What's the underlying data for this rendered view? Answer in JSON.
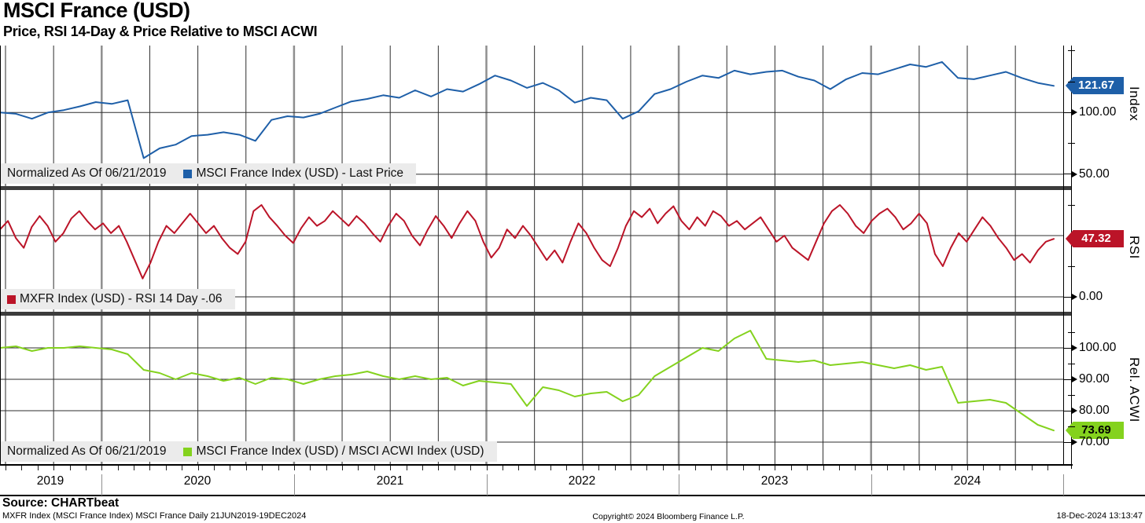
{
  "header": {
    "title": "MSCI France (USD)",
    "subtitle": "Price, RSI 14-Day & Price Relative to MSCI ACWI"
  },
  "colors": {
    "price_blue": "#1e5fa8",
    "rsi_red": "#bb1428",
    "relative_green": "#84d21e",
    "legend_bg": "#ebebeb",
    "grid": "#2e2e2e",
    "grid_year": "#8f8f8f",
    "separator": "#3c3c3c",
    "badge_text_light": "#ffffff",
    "badge_text_dark": "#000000"
  },
  "x_axis": {
    "year_labels": [
      "2019",
      "2020",
      "2021",
      "2022",
      "2023",
      "2024"
    ],
    "date_range": "21JUN2019-19DEC2024"
  },
  "chart_data": [
    {
      "type": "line",
      "panel": "price",
      "axis_title": "Index",
      "ylim": [
        41,
        154.3
      ],
      "yticks": [
        {
          "value": 100,
          "label": "100.00"
        },
        {
          "value": 50,
          "label": "50.00"
        }
      ],
      "yticks_minor": [
        150,
        125,
        75
      ],
      "grid_y": [
        100,
        50
      ],
      "legend_note": "Normalized As Of 06/21/2019",
      "last_value": 121.67,
      "last_label": "121.67",
      "series": [
        {
          "name": "MSCI France Index (USD) - Last Price",
          "color": "#1e5fa8",
          "x_start": "2019-06",
          "x_step": "month",
          "values": [
            100,
            99,
            95,
            100,
            102,
            105,
            108.5,
            107,
            110,
            63,
            71,
            74,
            81,
            82,
            84,
            82,
            77,
            94,
            97,
            96,
            99,
            104,
            109,
            111,
            114,
            112,
            118,
            113,
            119,
            117,
            123,
            130,
            126,
            120,
            124,
            118,
            108,
            112,
            110,
            95,
            101,
            115,
            119,
            125,
            130,
            128,
            134,
            131,
            133,
            134,
            129,
            126,
            119,
            127,
            132,
            131,
            135,
            139,
            137,
            141,
            128,
            127,
            130,
            133,
            128,
            124,
            121.67
          ]
        }
      ]
    },
    {
      "type": "line",
      "panel": "rsi",
      "axis_title": "RSI",
      "ylim": [
        -11.5,
        87.2
      ],
      "yticks": [
        {
          "value": 0,
          "label": "0.00"
        }
      ],
      "yticks_minor": [
        75,
        25
      ],
      "grid_y": [
        50,
        0
      ],
      "legend_note": null,
      "last_value": 47.32,
      "last_label": "47.32",
      "series": [
        {
          "name": "MXFR Index (USD) - RSI 14 Day -.06",
          "color": "#bb1428",
          "x_start": "2019-06",
          "x_step": "half-month",
          "values": [
            55,
            62,
            48,
            40,
            57,
            66,
            58,
            45,
            52,
            64,
            70,
            62,
            55,
            60,
            52,
            58,
            45,
            30,
            15,
            28,
            45,
            58,
            52,
            60,
            68,
            60,
            52,
            58,
            48,
            40,
            35,
            45,
            70,
            75,
            65,
            58,
            50,
            44,
            56,
            65,
            58,
            62,
            70,
            64,
            58,
            66,
            60,
            52,
            45,
            58,
            68,
            62,
            50,
            42,
            55,
            66,
            58,
            48,
            60,
            70,
            62,
            45,
            32,
            40,
            55,
            48,
            58,
            50,
            40,
            30,
            38,
            28,
            45,
            60,
            52,
            40,
            30,
            25,
            40,
            58,
            70,
            65,
            72,
            60,
            68,
            74,
            62,
            55,
            65,
            58,
            70,
            66,
            58,
            62,
            55,
            60,
            65,
            55,
            45,
            50,
            40,
            35,
            30,
            45,
            60,
            70,
            75,
            68,
            58,
            52,
            62,
            68,
            72,
            65,
            55,
            60,
            68,
            60,
            35,
            25,
            40,
            52,
            45,
            55,
            65,
            58,
            48,
            40,
            30,
            35,
            28,
            38,
            45,
            47.32
          ]
        }
      ]
    },
    {
      "type": "line",
      "panel": "relative",
      "axis_title": "Rel. ACWI",
      "ylim": [
        63,
        110.25
      ],
      "yticks": [
        {
          "value": 100,
          "label": "100.00"
        },
        {
          "value": 90,
          "label": "90.00"
        },
        {
          "value": 80,
          "label": "80.00"
        },
        {
          "value": 70,
          "label": "70.00"
        }
      ],
      "yticks_minor": [
        105,
        95,
        85,
        75
      ],
      "grid_y": [
        100,
        90,
        80,
        70
      ],
      "legend_note": "Normalized As Of 06/21/2019",
      "last_value": 73.69,
      "last_label": "73.69",
      "series": [
        {
          "name": "MSCI France Index (USD) / MSCI ACWI Index (USD)",
          "color": "#84d21e",
          "x_start": "2019-06",
          "x_step": "month",
          "values": [
            100,
            100.5,
            99,
            100,
            100,
            100.5,
            100,
            99.5,
            98,
            93,
            92,
            90,
            92,
            91,
            89.5,
            90.5,
            88.5,
            90.5,
            90,
            88.5,
            90,
            91,
            91.5,
            92.5,
            91,
            90,
            91,
            90,
            90.5,
            88,
            89.5,
            89,
            88.5,
            81.5,
            87.5,
            86.5,
            84.5,
            85.5,
            86,
            83,
            85,
            91,
            94,
            97,
            100,
            99,
            103,
            105.5,
            96.5,
            96,
            95.5,
            96,
            94.5,
            95,
            95.5,
            94.5,
            93.5,
            94.5,
            93,
            94,
            82.5,
            83,
            83.5,
            82.5,
            79,
            75.5,
            73.69
          ]
        }
      ]
    }
  ],
  "footer": {
    "source": "Source: CHARTbeat",
    "detail": "MXFR Index (MSCI France Index) MSCI France  Daily 21JUN2019-19DEC2024",
    "copyright": "Copyright© 2024 Bloomberg Finance L.P.",
    "timestamp": "18-Dec-2024 13:13:47"
  }
}
